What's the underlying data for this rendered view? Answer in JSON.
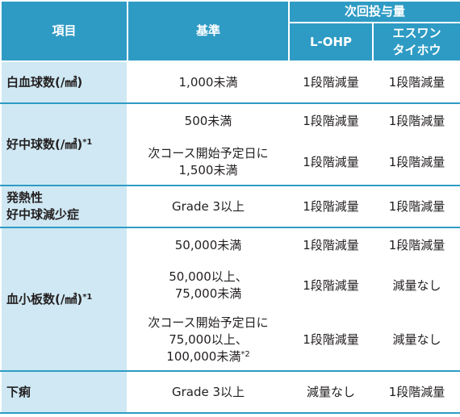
{
  "header": {
    "item": "項目",
    "criteria": "基準",
    "next_dose": "次回投与量",
    "loHP": "L-OHP",
    "eswan_line1": "エスワン",
    "eswan_line2": "タイホウ"
  },
  "rows": [
    {
      "item": "白血球数(/㎣)",
      "sub": [
        {
          "criteria": [
            "1,000未満"
          ],
          "loHP": "1段階減量",
          "eswan": "1段階減量"
        }
      ]
    },
    {
      "item": "好中球数(/㎣)",
      "item_note": "*1",
      "sub": [
        {
          "criteria": [
            "500未満"
          ],
          "loHP": "1段階減量",
          "eswan": "1段階減量"
        },
        {
          "criteria": [
            "次コース開始予定日に",
            "1,500未満"
          ],
          "loHP": "1段階減量",
          "eswan": "1段階減量"
        }
      ]
    },
    {
      "item_lines": [
        "発熱性",
        "好中球減少症"
      ],
      "sub": [
        {
          "criteria": [
            "Grade 3以上"
          ],
          "loHP": "1段階減量",
          "eswan": "1段階減量"
        }
      ]
    },
    {
      "item": "血小板数(/㎣)",
      "item_note": "*1",
      "sub": [
        {
          "criteria": [
            "50,000未満"
          ],
          "loHP": "1段階減量",
          "eswan": "1段階減量"
        },
        {
          "criteria": [
            "50,000以上、",
            "75,000未満"
          ],
          "loHP": "1段階減量",
          "eswan": "減量なし"
        },
        {
          "criteria": [
            "次コース開始予定日に",
            "75,000以上、",
            "100,000未満"
          ],
          "criteria_note": "*2",
          "loHP": "1段階減量",
          "eswan": "減量なし"
        }
      ]
    },
    {
      "item": "下痢",
      "sub": [
        {
          "criteria": [
            "Grade 3以上"
          ],
          "loHP": "減量なし",
          "eswan": "1段階減量"
        }
      ]
    }
  ]
}
